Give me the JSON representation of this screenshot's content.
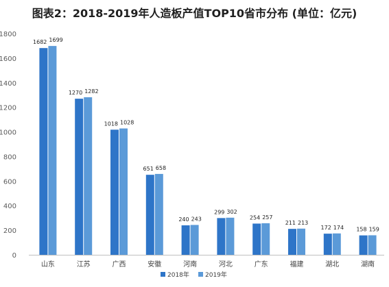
{
  "chart_data": {
    "type": "bar",
    "title": "图表2：2018-2019年人造板产值TOP10省市分布 (单位：亿元)",
    "categories": [
      "山东",
      "江苏",
      "广西",
      "安徽",
      "河南",
      "河北",
      "广东",
      "福建",
      "湖北",
      "湖南"
    ],
    "series": [
      {
        "name": "2018年",
        "values": [
          1682,
          1270,
          1018,
          651,
          240,
          299,
          254,
          211,
          172,
          158
        ]
      },
      {
        "name": "2019年",
        "values": [
          1699,
          1282,
          1028,
          658,
          243,
          302,
          257,
          213,
          174,
          159
        ]
      }
    ],
    "ylim": [
      0,
      1800
    ],
    "yticks": [
      0,
      200,
      400,
      600,
      800,
      1000,
      1200,
      1400,
      1600,
      1800
    ],
    "grid": false,
    "legend": "bottom"
  },
  "colors": {
    "series_2018": "#2e75c8",
    "series_2019": "#5b9ad8",
    "axis": "#bfbfbf"
  }
}
